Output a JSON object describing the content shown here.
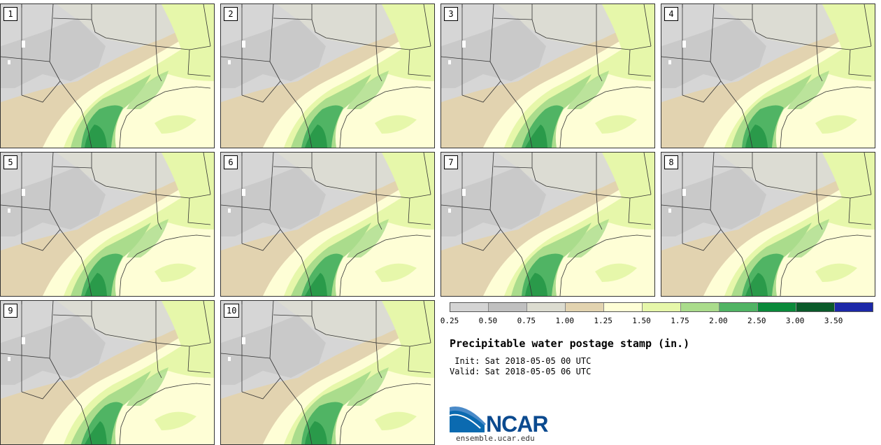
{
  "panels": [
    "1",
    "2",
    "3",
    "4",
    "5",
    "6",
    "7",
    "8",
    "9",
    "10"
  ],
  "legend": {
    "colors": [
      "#d4d4d4",
      "#c0c0c0",
      "#dcdcd0",
      "#e2d3b0",
      "#fefed6",
      "#e6f7aa",
      "#aadc8c",
      "#50b464",
      "#0a8a3a",
      "#0a5a2a",
      "#1c28a8"
    ],
    "ticks": [
      "0.25",
      "0.50",
      "0.75",
      "1.00",
      "1.25",
      "1.50",
      "1.75",
      "2.00",
      "2.50",
      "3.00",
      "3.50"
    ]
  },
  "title": "Precipitable water postage stamp (in.)",
  "init": " Init: Sat 2018-05-05 00 UTC",
  "valid": "Valid: Sat 2018-05-05 06 UTC",
  "logo": {
    "text": "NCAR",
    "site": "ensemble.ucar.edu"
  },
  "map_colors": {
    "dry_gray": "#c9c9c9",
    "gray": "#d6d6d6",
    "light_gray": "#dcdcd3",
    "tan": "#e2d3b0",
    "cream": "#fefed6",
    "light_green": "#e6f7aa",
    "green": "#aadc8c",
    "mid_green": "#50b464",
    "dark_green": "#2a9a4a"
  }
}
